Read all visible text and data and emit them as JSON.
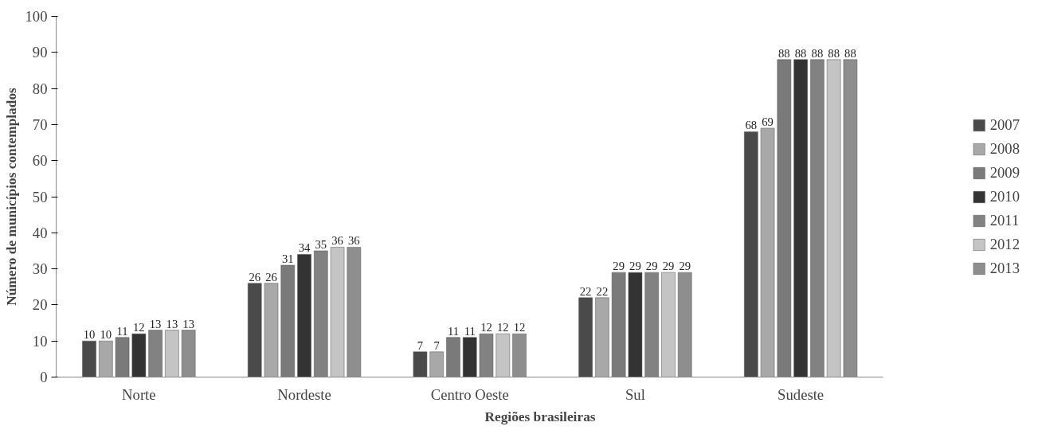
{
  "chart_data": {
    "type": "bar",
    "xlabel": "Regiões brasileiras",
    "ylabel": "Número de municípios contemplados",
    "categories": [
      "Norte",
      "Nordeste",
      "Centro Oeste",
      "Sul",
      "Sudeste"
    ],
    "series": [
      {
        "name": "2007",
        "color": "#4a4a4a",
        "values": [
          10,
          26,
          7,
          22,
          68
        ]
      },
      {
        "name": "2008",
        "color": "#a8a8a8",
        "values": [
          10,
          26,
          7,
          22,
          69
        ]
      },
      {
        "name": "2009",
        "color": "#7a7a7a",
        "values": [
          11,
          31,
          11,
          29,
          88
        ]
      },
      {
        "name": "2010",
        "color": "#333333",
        "values": [
          12,
          34,
          11,
          29,
          88
        ]
      },
      {
        "name": "2011",
        "color": "#828282",
        "values": [
          13,
          35,
          12,
          29,
          88
        ]
      },
      {
        "name": "2012",
        "color": "#c4c4c4",
        "values": [
          13,
          36,
          12,
          29,
          88
        ]
      },
      {
        "name": "2013",
        "color": "#8e8e8e",
        "values": [
          13,
          36,
          12,
          29,
          88
        ]
      }
    ],
    "ylim": [
      0,
      100
    ],
    "yticks": [
      0,
      10,
      20,
      30,
      40,
      50,
      60,
      70,
      80,
      90,
      100
    ],
    "grid": false,
    "legend": "right",
    "data_labels": true
  }
}
